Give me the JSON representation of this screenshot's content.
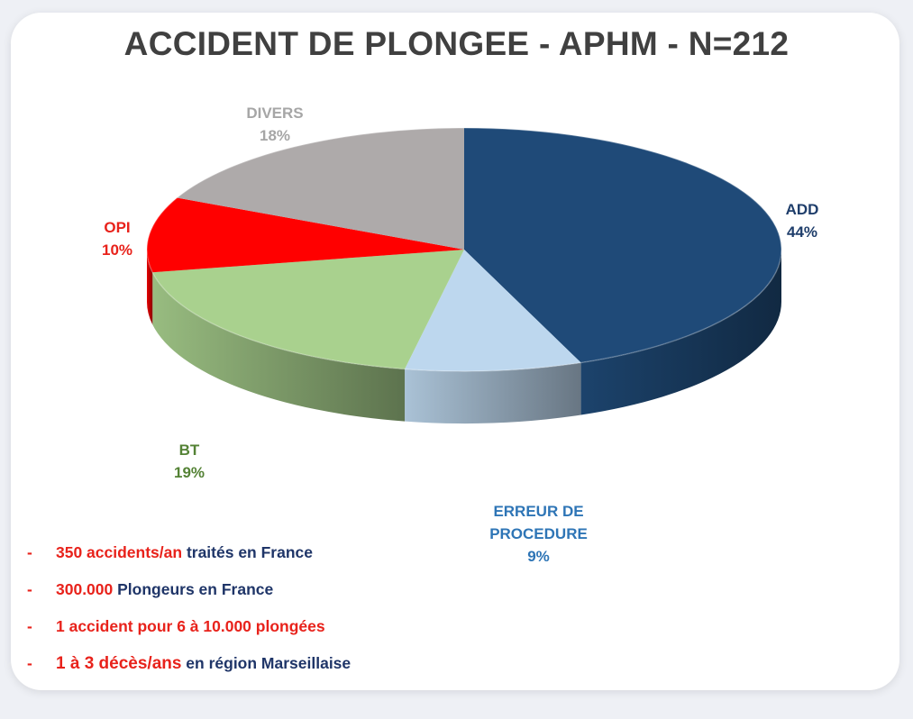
{
  "title": "ACCIDENT DE PLONGEE - APHM - N=212",
  "chart_data": {
    "type": "pie",
    "title": "ACCIDENT DE PLONGEE - APHM - N=212",
    "style": "3d",
    "slices": [
      {
        "label_lines": [
          "ADD"
        ],
        "percent_label": "44%",
        "value": 44,
        "color": "#1f4a78",
        "label_color": "#1f3e6b"
      },
      {
        "label_lines": [
          "ERREUR DE",
          "PROCEDURE"
        ],
        "percent_label": "9%",
        "value": 9,
        "color": "#bdd7ee",
        "label_color": "#2e75b6"
      },
      {
        "label_lines": [
          "BT"
        ],
        "percent_label": "19%",
        "value": 19,
        "color": "#a9d18e",
        "label_color": "#548235"
      },
      {
        "label_lines": [
          "OPI"
        ],
        "percent_label": "10%",
        "value": 10,
        "color": "#ff0000",
        "label_color": "#e8221b"
      },
      {
        "label_lines": [
          "DIVERS"
        ],
        "percent_label": "18%",
        "value": 18,
        "color": "#aeaaaa",
        "label_color": "#a6a6a6"
      }
    ]
  },
  "notes": [
    {
      "dash": "-",
      "highlight": "350 accidents/an",
      "rest": " traités en France"
    },
    {
      "dash": "-",
      "highlight": "300.000",
      "rest": " Plongeurs en France"
    },
    {
      "dash": "-",
      "highlight": "1 accident pour 6 à 10.000 plongées",
      "rest": ""
    },
    {
      "dash": "-",
      "highlight": "1 à 3  décès/ans",
      "rest": " en région Marseillaise"
    }
  ]
}
